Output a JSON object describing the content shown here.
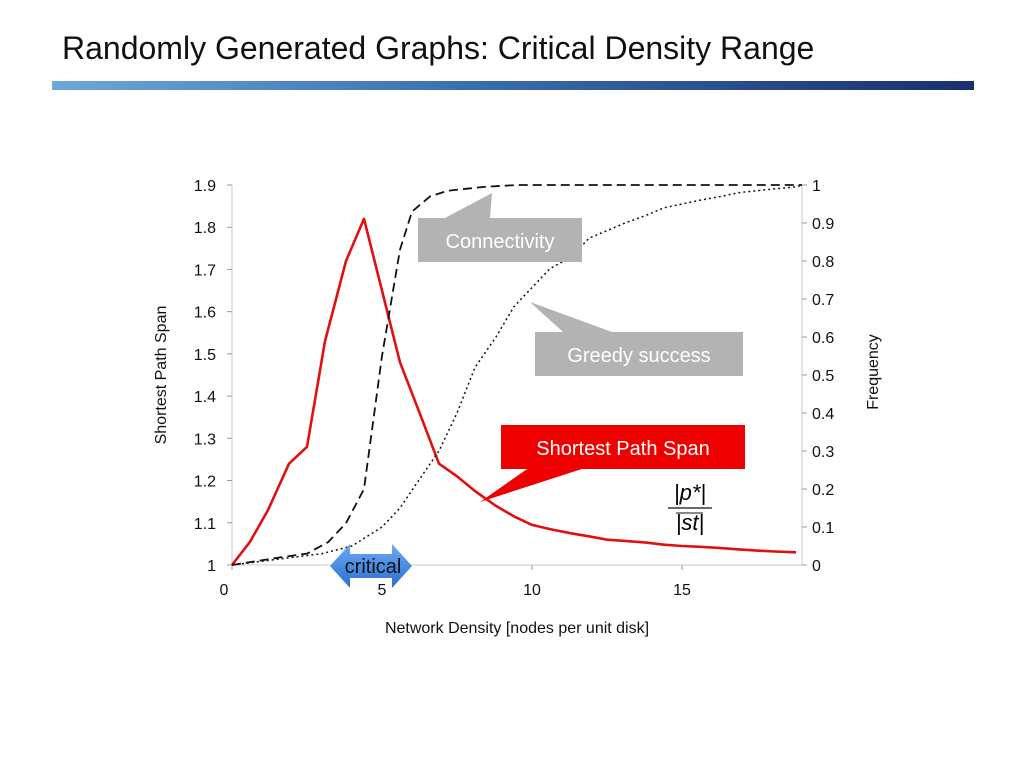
{
  "slide": {
    "title": "Randomly Generated Graphs: Critical Density Range"
  },
  "colors": {
    "title_bar_start": "#6fa7d8",
    "title_bar_end": "#1a2f6e",
    "span_line": "#e01010",
    "callout_gray": "#b3b3b3",
    "callout_red": "#ee0000",
    "critical_blue": "#3b82e0"
  },
  "chart_data": {
    "type": "line",
    "xlabel": "Network Density [nodes per unit disk]",
    "ylabel_left": "Shortest Path Span",
    "ylabel_right": "Frequency",
    "xlim": [
      0,
      19
    ],
    "ylim_left": [
      1,
      1.9
    ],
    "ylim_right": [
      0,
      1
    ],
    "x_ticks": [
      "0",
      "5",
      "10",
      "15"
    ],
    "y_left_ticks": [
      "1",
      "1.1",
      "1.2",
      "1.3",
      "1.4",
      "1.5",
      "1.6",
      "1.7",
      "1.8",
      "1.9"
    ],
    "y_right_ticks": [
      "0",
      "0.1",
      "0.2",
      "0.3",
      "0.4",
      "0.5",
      "0.6",
      "0.7",
      "0.8",
      "0.9",
      "1"
    ],
    "series": [
      {
        "name": "Shortest Path Span",
        "axis": "left",
        "style": "solid",
        "x": [
          0,
          0.6,
          1.2,
          1.9,
          2.5,
          3.1,
          3.8,
          4.4,
          5.0,
          5.6,
          6.2,
          6.9,
          7.5,
          8.1,
          8.8,
          9.4,
          10.0,
          10.6,
          11.3,
          11.9,
          12.5,
          13.1,
          13.8,
          14.4,
          15.0,
          15.6,
          16.3,
          16.9,
          17.5,
          18.1,
          18.8
        ],
        "y": [
          1.0,
          1.055,
          1.13,
          1.24,
          1.28,
          1.53,
          1.72,
          1.82,
          1.65,
          1.48,
          1.37,
          1.24,
          1.21,
          1.175,
          1.14,
          1.115,
          1.095,
          1.085,
          1.075,
          1.068,
          1.06,
          1.057,
          1.053,
          1.048,
          1.045,
          1.043,
          1.04,
          1.037,
          1.034,
          1.032,
          1.03
        ]
      },
      {
        "name": "Connectivity",
        "axis": "right",
        "style": "dashed",
        "x": [
          0,
          0.8,
          1.6,
          2.5,
          3.2,
          3.8,
          4.4,
          5.0,
          5.6,
          6.0,
          6.6,
          7.2,
          7.8,
          8.4,
          9.0,
          9.6,
          10.2,
          11.0,
          12.0,
          13.0,
          14.0,
          15.0,
          16.0,
          17.0,
          18.0,
          19.0
        ],
        "y": [
          0,
          0.01,
          0.02,
          0.03,
          0.06,
          0.11,
          0.2,
          0.55,
          0.83,
          0.93,
          0.97,
          0.985,
          0.99,
          0.995,
          0.998,
          1,
          1,
          1,
          1,
          1,
          1,
          1,
          1,
          1,
          1,
          1
        ]
      },
      {
        "name": "Greedy success",
        "axis": "right",
        "style": "dotted",
        "x": [
          0,
          1.0,
          2.0,
          3.0,
          4.0,
          5.0,
          5.6,
          6.2,
          6.9,
          7.5,
          8.1,
          8.8,
          9.4,
          10.0,
          10.6,
          11.3,
          11.9,
          12.5,
          13.1,
          13.8,
          14.4,
          15.0,
          15.6,
          16.3,
          16.9,
          17.5,
          18.1,
          18.8,
          19.0
        ],
        "y": [
          0,
          0.01,
          0.02,
          0.03,
          0.05,
          0.1,
          0.15,
          0.22,
          0.3,
          0.4,
          0.52,
          0.6,
          0.68,
          0.73,
          0.78,
          0.81,
          0.86,
          0.88,
          0.9,
          0.92,
          0.94,
          0.95,
          0.96,
          0.97,
          0.98,
          0.985,
          0.99,
          0.995,
          1.0
        ]
      }
    ],
    "annotations": {
      "connectivity": "Connectivity",
      "greedy": "Greedy success",
      "span": "Shortest Path Span",
      "critical": "critical"
    }
  }
}
